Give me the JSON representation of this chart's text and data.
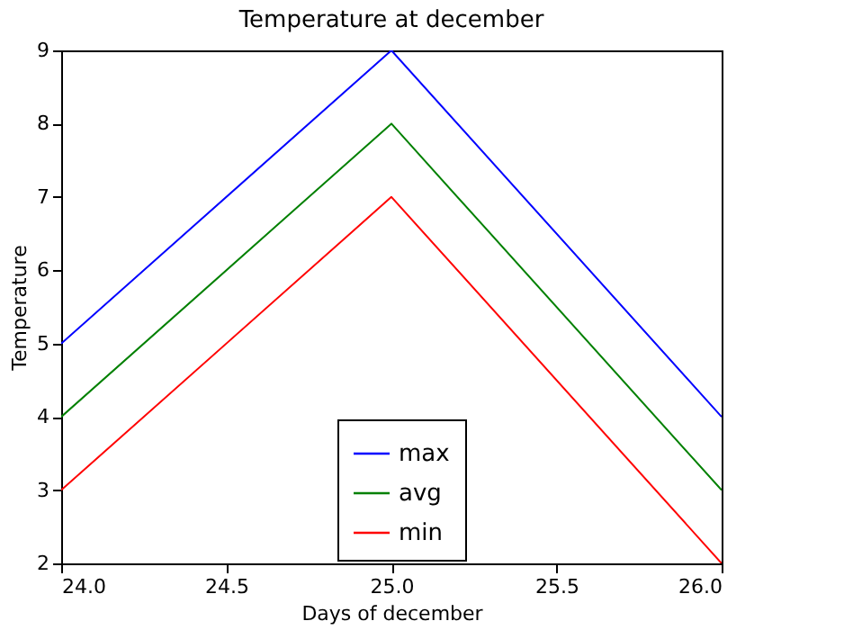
{
  "chart_data": {
    "type": "line",
    "title": "Temperature at december",
    "xlabel": "Days of december",
    "ylabel": "Temperature",
    "x": [
      24,
      25,
      26
    ],
    "series": [
      {
        "name": "max",
        "color": "#0000ff",
        "values": [
          5,
          9,
          4
        ]
      },
      {
        "name": "avg",
        "color": "#008000",
        "values": [
          4,
          8,
          3
        ]
      },
      {
        "name": "min",
        "color": "#ff0000",
        "values": [
          3,
          7,
          2
        ]
      }
    ],
    "xlim": [
      24,
      26
    ],
    "xticks": [
      {
        "value": 24,
        "label": "24.0"
      },
      {
        "value": 24.5,
        "label": "24.5"
      },
      {
        "value": 25,
        "label": "25.0"
      },
      {
        "value": 25.5,
        "label": "25.5"
      },
      {
        "value": 26,
        "label": "26.0"
      }
    ],
    "ylim": [
      2,
      9
    ],
    "yticks": [
      2,
      3,
      4,
      5,
      6,
      7,
      8,
      9
    ],
    "grid": false,
    "legend": "bottom",
    "marker": "none",
    "line_style": "solid"
  }
}
